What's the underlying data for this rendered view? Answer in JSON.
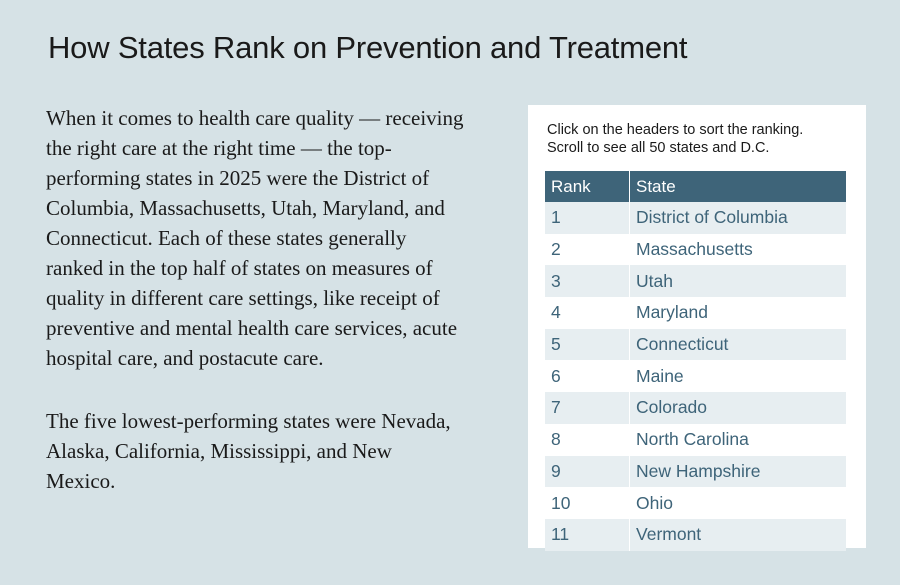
{
  "page": {
    "title": "How States Rank on Prevention and Treatment",
    "paragraphs": [
      "When it comes to health care quality — receiving the right care at the right time — the top-performing states in 2025 were the District of Columbia, Massachusetts, Utah, Maryland, and Connecticut. Each of these states generally ranked in the top half of states on measures of quality in different care settings, like receipt of preventive and mental health care services, acute hospital care, and postacute care.",
      "The five lowest-performing states were Nevada, Alaska, California, Mississippi, and New Mexico."
    ]
  },
  "table": {
    "instructions_line1": "Click on the headers to sort the ranking.",
    "instructions_line2": "Scroll to see all 50 states and D.C.",
    "headers": {
      "rank": "Rank",
      "state": "State"
    },
    "rows": [
      {
        "rank": "1",
        "state": "District of Columbia"
      },
      {
        "rank": "2",
        "state": "Massachusetts"
      },
      {
        "rank": "3",
        "state": "Utah"
      },
      {
        "rank": "4",
        "state": "Maryland"
      },
      {
        "rank": "5",
        "state": "Connecticut"
      },
      {
        "rank": "6",
        "state": "Maine"
      },
      {
        "rank": "7",
        "state": "Colorado"
      },
      {
        "rank": "8",
        "state": "North Carolina"
      },
      {
        "rank": "9",
        "state": "New Hampshire"
      },
      {
        "rank": "10",
        "state": "Ohio"
      },
      {
        "rank": "11",
        "state": "Vermont"
      }
    ]
  },
  "colors": {
    "background": "#d6e2e6",
    "header": "#3e6479",
    "stripe": "#e7eef1",
    "link_text": "#3e6479"
  }
}
